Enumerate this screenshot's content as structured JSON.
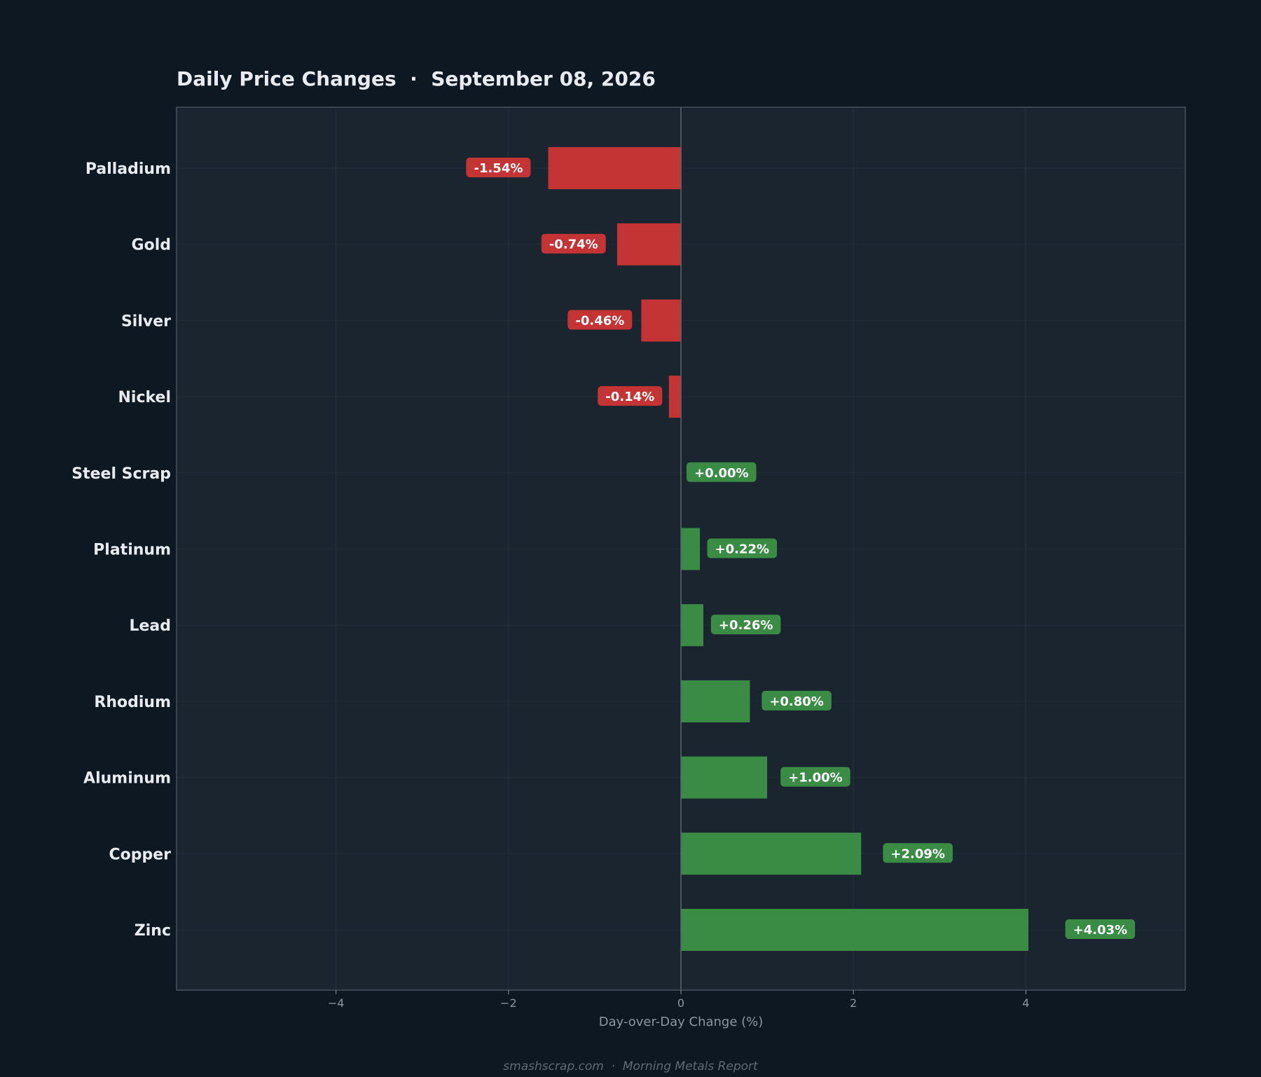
{
  "chart_data": {
    "type": "bar",
    "orientation": "horizontal",
    "title": "Daily Price Changes  ·  September 08, 2026",
    "xlabel": "Day-over-Day Change (%)",
    "ylabel": "",
    "xlim": [
      -5.85,
      5.85
    ],
    "xticks": [
      -4,
      -2,
      0,
      2,
      4
    ],
    "xtick_labels": [
      "−4",
      "−2",
      "0",
      "2",
      "4"
    ],
    "grid": true,
    "categories": [
      "Palladium",
      "Gold",
      "Silver",
      "Nickel",
      "Steel Scrap",
      "Platinum",
      "Lead",
      "Rhodium",
      "Aluminum",
      "Copper",
      "Zinc"
    ],
    "values": [
      -1.54,
      -0.74,
      -0.46,
      -0.14,
      0.0,
      0.22,
      0.26,
      0.8,
      1.0,
      2.09,
      4.03
    ],
    "value_labels": [
      "-1.54%",
      "-0.74%",
      "-0.46%",
      "-0.14%",
      "+0.00%",
      "+0.22%",
      "+0.26%",
      "+0.80%",
      "+1.00%",
      "+2.09%",
      "+4.03%"
    ],
    "colors": {
      "negative": "#c53434",
      "positive": "#3a8c45",
      "plot_background": "#1b2530",
      "page_background": "#0e1822",
      "frame": "#46515c",
      "zero_line": "#5b6670"
    }
  },
  "footer": {
    "text": "smashscrap.com  ·  Morning Metals Report"
  }
}
